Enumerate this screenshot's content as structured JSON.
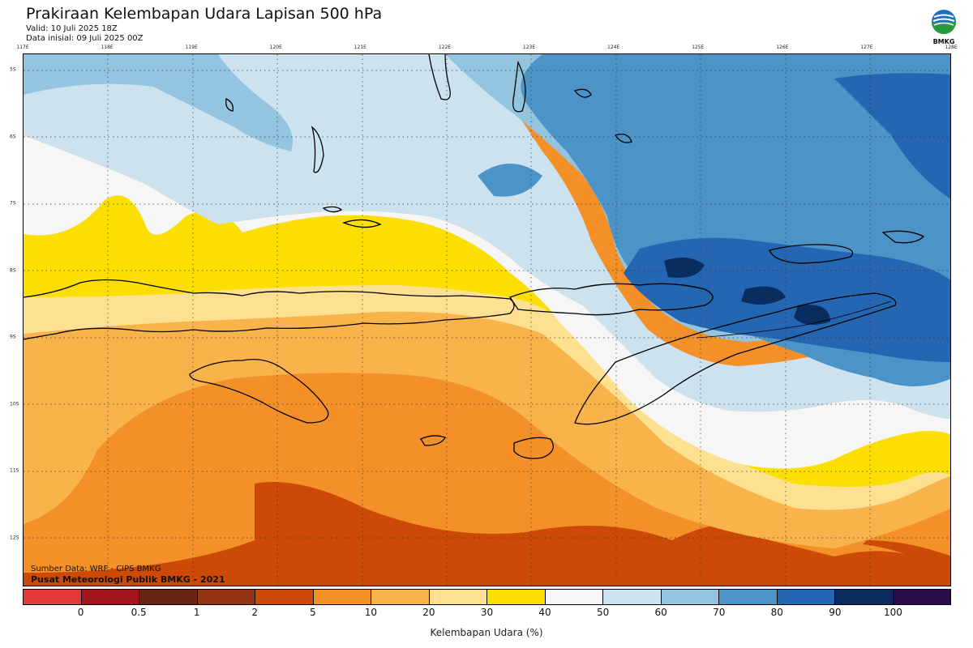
{
  "header": {
    "title": "Prakiraan Kelembapan Udara Lapisan 500 hPa",
    "valid": "Valid: 10 Juli 2025 18Z",
    "initial": "Data inisial: 09 Juli 2025 00Z"
  },
  "logo": {
    "icon": "bmkg-logo-icon",
    "text": "BMKG"
  },
  "axes": {
    "longitudes": [
      "117E",
      "118E",
      "119E",
      "120E",
      "121E",
      "122E",
      "123E",
      "124E",
      "125E",
      "126E",
      "127E",
      "128E"
    ],
    "latitudes": [
      "5S",
      "6S",
      "7S",
      "8S",
      "9S",
      "10S",
      "11S",
      "12S"
    ]
  },
  "credits": {
    "source": "Sumber Data: WRF - CIPS BMKG",
    "org": "Pusat Meteorologi Publik BMKG - 2021"
  },
  "colorbar": {
    "colors": [
      "#e23a37",
      "#a4161c",
      "#6a2416",
      "#8f3312",
      "#cc4a06",
      "#f39128",
      "#f9b34b",
      "#fde090",
      "#fadf00",
      "#f6f6f6",
      "#cde2ef",
      "#94c5e0",
      "#4c94c8",
      "#2466b1",
      "#0a2d60",
      "#2b0c4a"
    ],
    "ticks": [
      "0",
      "0.5",
      "1",
      "2",
      "5",
      "10",
      "20",
      "30",
      "40",
      "50",
      "60",
      "70",
      "80",
      "90",
      "100"
    ],
    "label": "Kelembapan Udara (%)"
  }
}
